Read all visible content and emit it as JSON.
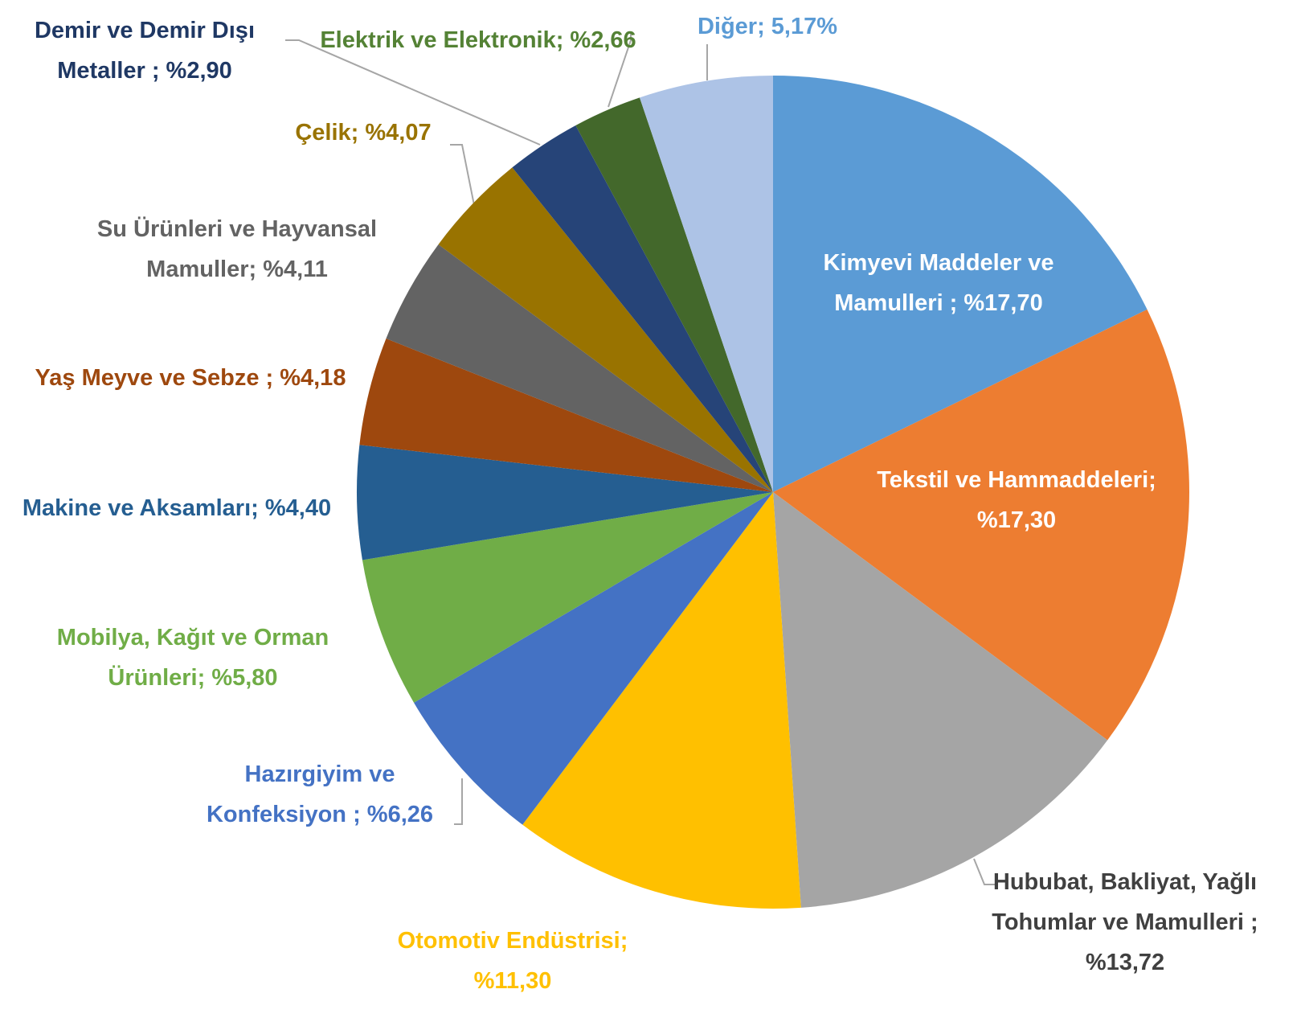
{
  "chart_data": {
    "type": "pie",
    "value_labels": [
      "Kimyevi Maddeler ve Mamulleri  ; %17,70",
      "Tekstil ve Hammaddeleri; %17,30",
      "Hububat, Bakliyat, Yağlı Tohumlar ve Mamulleri ; %13,72",
      "Otomotiv Endüstrisi; %11,30",
      "Hazırgiyim ve Konfeksiyon ; %6,26",
      "Mobilya, Kağıt ve Orman Ürünleri; %5,80",
      "Makine ve Aksamları; %4,40",
      "Yaş Meyve ve Sebze  ; %4,18",
      "Su Ürünleri ve Hayvansal Mamuller; %4,11",
      "Çelik; %4,07",
      "Demir ve Demir Dışı Metaller ; %2,90",
      "Elektrik ve Elektronik; %2,66",
      "Diğer; 5,17%"
    ],
    "values": [
      17.7,
      17.3,
      13.72,
      11.3,
      6.26,
      5.8,
      4.4,
      4.18,
      4.11,
      4.07,
      2.9,
      2.66,
      5.17
    ],
    "colors": [
      "#5b9bd5",
      "#ed7d31",
      "#a5a5a5",
      "#ffc000",
      "#4472c4",
      "#70ad47",
      "#255e91",
      "#9e480e",
      "#636363",
      "#997300",
      "#264478",
      "#43682b",
      "#adc3e6"
    ],
    "label_colors": [
      "#ffffff",
      "#ffffff",
      "#404040",
      "#ffc000",
      "#4472c4",
      "#70ad47",
      "#255e91",
      "#9e480e",
      "#636363",
      "#997300",
      "#1f3864",
      "#548235",
      "#5b9bd5"
    ]
  }
}
